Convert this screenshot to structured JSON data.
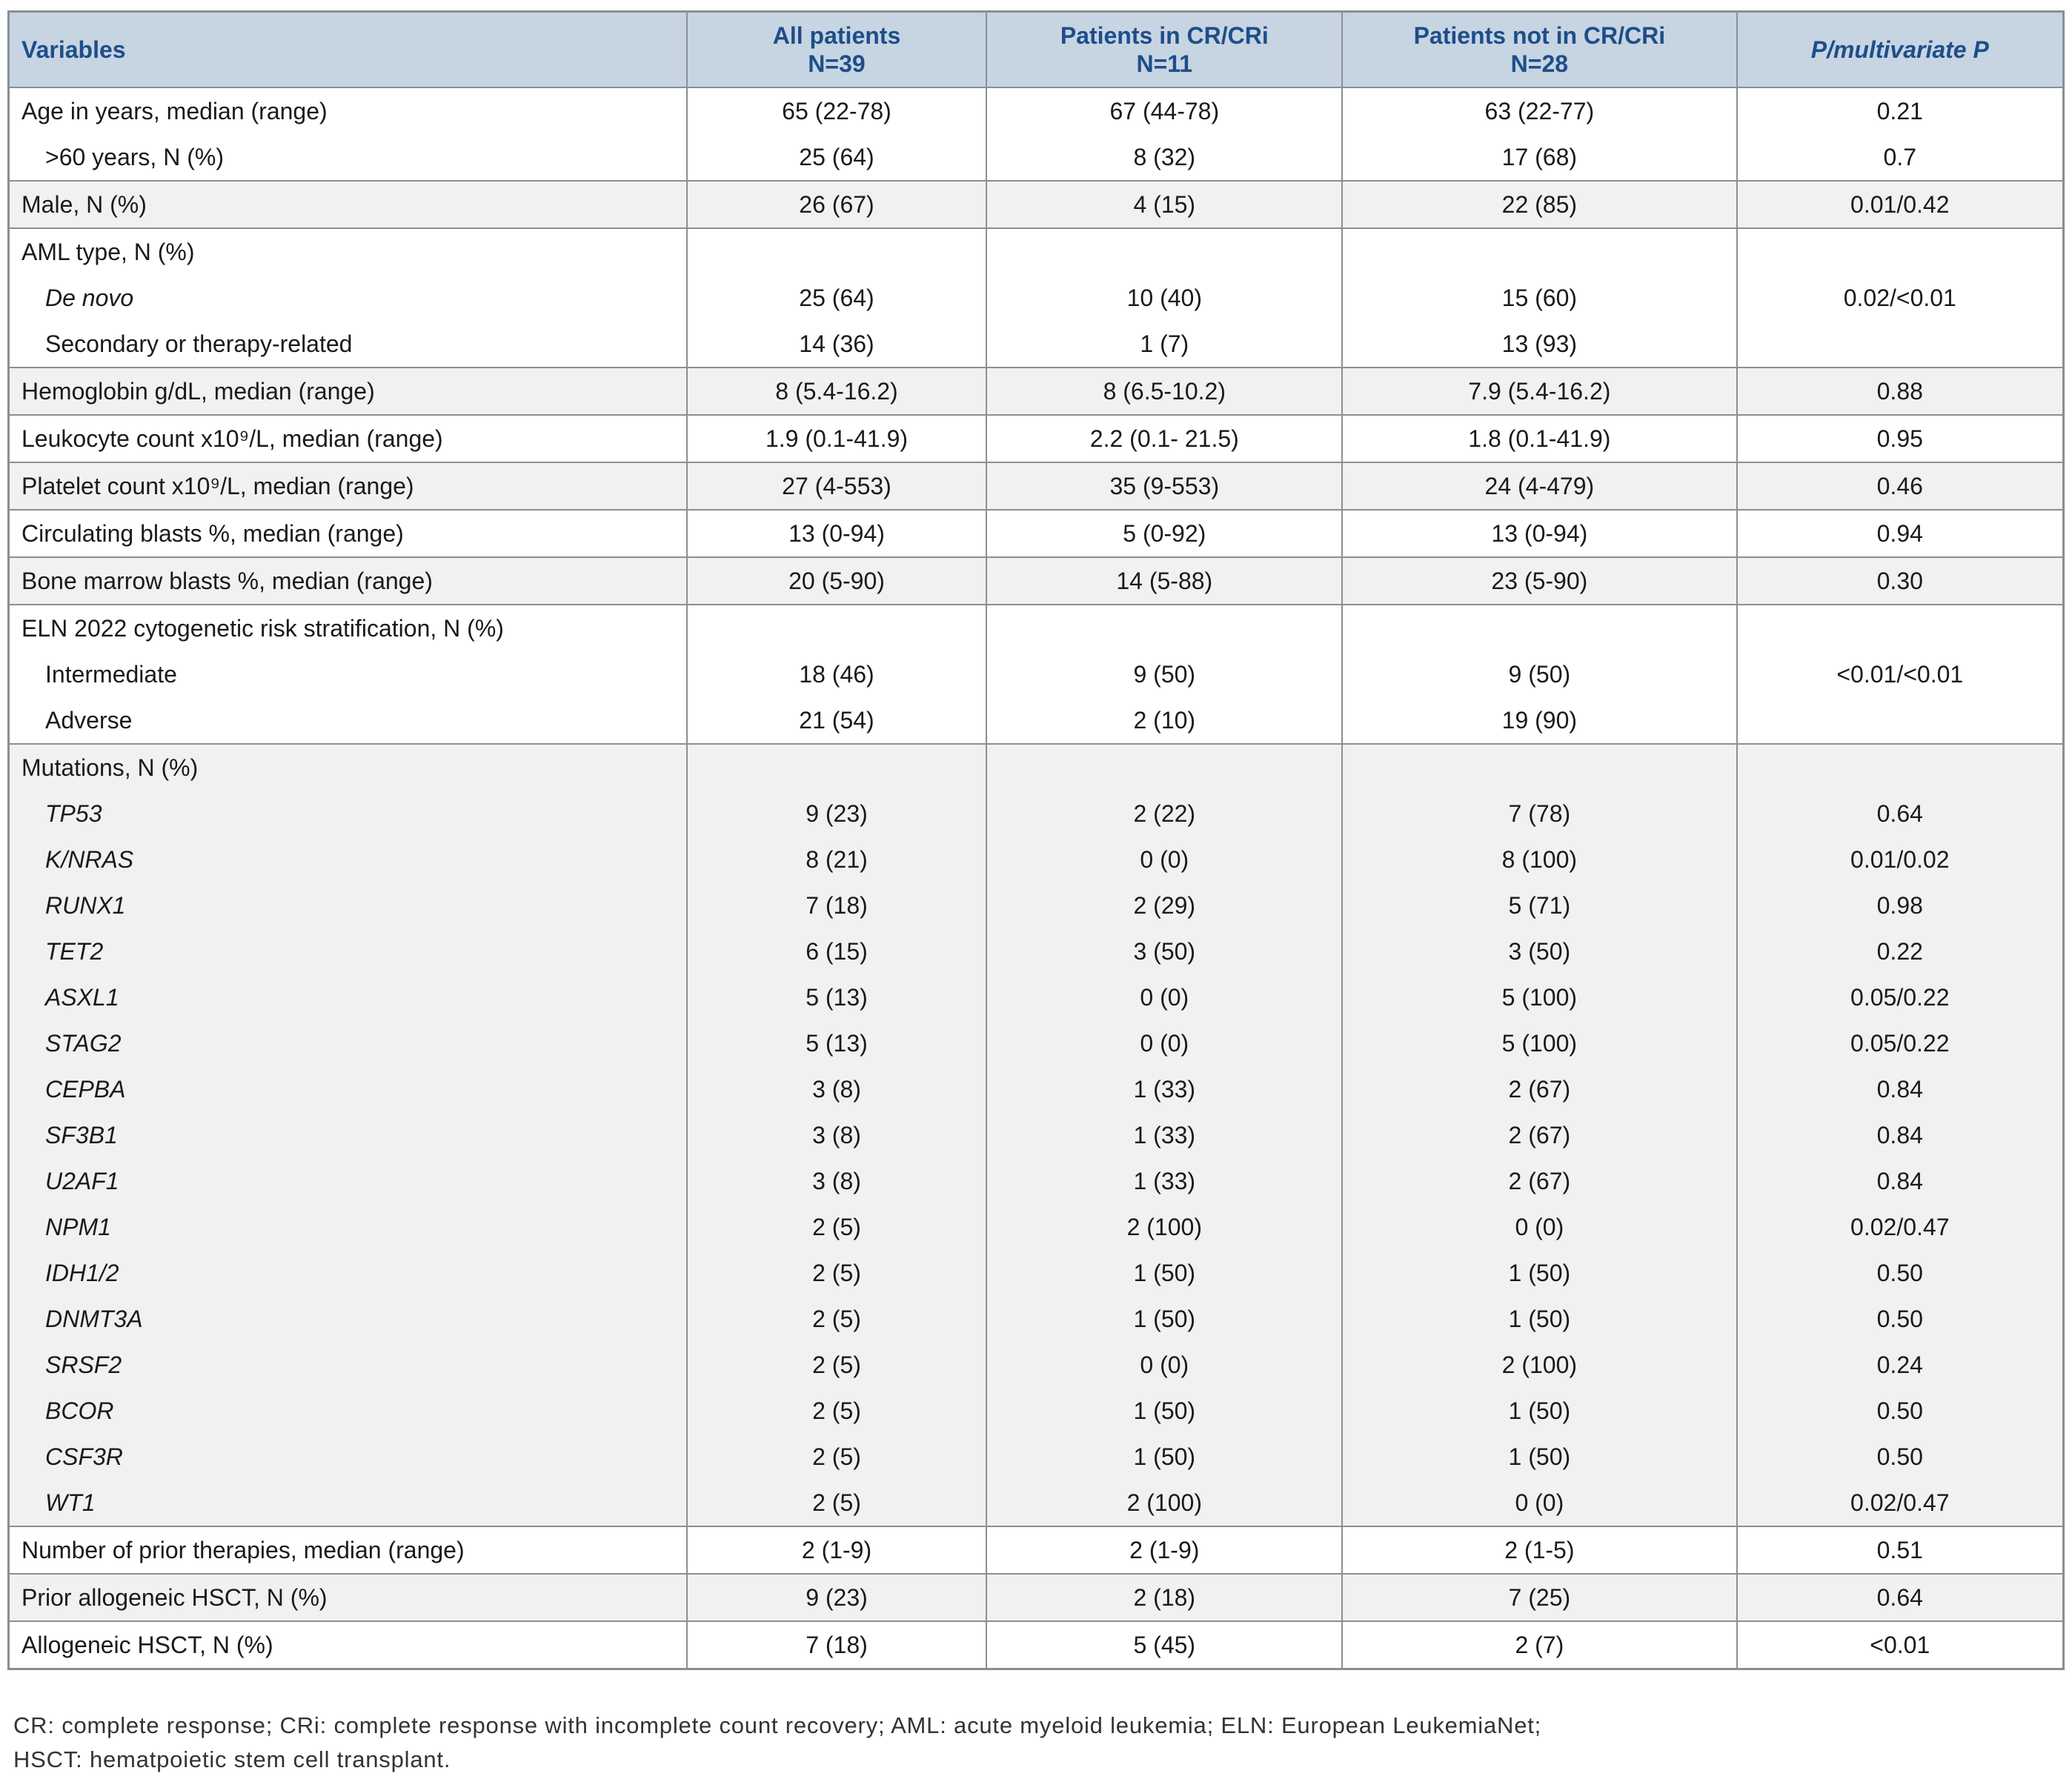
{
  "header": {
    "columns": [
      {
        "label": "Variables",
        "sub": ""
      },
      {
        "label": "All patients",
        "sub": "N=39"
      },
      {
        "label": "Patients in CR/CRi",
        "sub": "N=11"
      },
      {
        "label": "Patients not in CR/CRi",
        "sub": "N=28"
      },
      {
        "label": "P/multivariate P",
        "sub": ""
      }
    ]
  },
  "bands": [
    {
      "shade": "white",
      "rows": [
        {
          "label": "Age in years, median (range)",
          "indent": 0,
          "italic": false,
          "values": [
            "65 (22-78)",
            "67 (44-78)",
            "63 (22-77)",
            "0.21"
          ]
        },
        {
          "label": ">60 years, N (%)",
          "indent": 1,
          "italic": false,
          "values": [
            "25 (64)",
            "8 (32)",
            "17 (68)",
            "0.7"
          ]
        }
      ]
    },
    {
      "shade": "gray",
      "rows": [
        {
          "label": "Male, N (%)",
          "indent": 0,
          "italic": false,
          "values": [
            "26 (67)",
            "4 (15)",
            "22 (85)",
            "0.01/0.42"
          ]
        }
      ]
    },
    {
      "shade": "white",
      "rows": [
        {
          "label": "AML type, N (%)",
          "indent": 0,
          "italic": false,
          "values": [
            "",
            "",
            "",
            ""
          ]
        },
        {
          "label": "De novo",
          "indent": 1,
          "italic": true,
          "values": [
            "25 (64)",
            "10 (40)",
            "15 (60)",
            "0.02/<0.01"
          ]
        },
        {
          "label": "Secondary or therapy-related",
          "indent": 1,
          "italic": false,
          "values": [
            "14 (36)",
            "1 (7)",
            "13 (93)",
            ""
          ]
        }
      ]
    },
    {
      "shade": "gray",
      "rows": [
        {
          "label": "Hemoglobin g/dL, median (range)",
          "indent": 0,
          "italic": false,
          "values": [
            "8 (5.4-16.2)",
            "8 (6.5-10.2)",
            "7.9 (5.4-16.2)",
            "0.88"
          ]
        }
      ]
    },
    {
      "shade": "white",
      "rows": [
        {
          "label": "Leukocyte count x10⁹/L, median (range)",
          "indent": 0,
          "italic": false,
          "values": [
            "1.9 (0.1-41.9)",
            "2.2 (0.1- 21.5)",
            "1.8 (0.1-41.9)",
            "0.95"
          ]
        }
      ]
    },
    {
      "shade": "gray",
      "rows": [
        {
          "label": "Platelet count x10⁹/L, median (range)",
          "indent": 0,
          "italic": false,
          "values": [
            "27 (4-553)",
            "35 (9-553)",
            "24 (4-479)",
            "0.46"
          ]
        }
      ]
    },
    {
      "shade": "white",
      "rows": [
        {
          "label": "Circulating blasts %, median (range)",
          "indent": 0,
          "italic": false,
          "values": [
            "13 (0-94)",
            "5 (0-92)",
            "13 (0-94)",
            "0.94"
          ]
        }
      ]
    },
    {
      "shade": "gray",
      "rows": [
        {
          "label": "Bone marrow blasts %, median (range)",
          "indent": 0,
          "italic": false,
          "values": [
            "20 (5-90)",
            "14 (5-88)",
            "23 (5-90)",
            "0.30"
          ]
        }
      ]
    },
    {
      "shade": "white",
      "rows": [
        {
          "label": "ELN 2022 cytogenetic risk stratification, N (%)",
          "indent": 0,
          "italic": false,
          "values": [
            "",
            "",
            "",
            ""
          ]
        },
        {
          "label": "Intermediate",
          "indent": 1,
          "italic": false,
          "values": [
            "18 (46)",
            "9 (50)",
            "9 (50)",
            "<0.01/<0.01"
          ]
        },
        {
          "label": "Adverse",
          "indent": 1,
          "italic": false,
          "values": [
            "21 (54)",
            "2 (10)",
            "19 (90)",
            ""
          ]
        }
      ]
    },
    {
      "shade": "gray",
      "rows": [
        {
          "label": "Mutations, N (%)",
          "indent": 0,
          "italic": false,
          "values": [
            "",
            "",
            "",
            ""
          ]
        },
        {
          "label": "TP53",
          "indent": 1,
          "italic": true,
          "values": [
            "9 (23)",
            "2 (22)",
            "7 (78)",
            "0.64"
          ]
        },
        {
          "label": "K/NRAS",
          "indent": 1,
          "italic": true,
          "values": [
            "8 (21)",
            "0 (0)",
            "8 (100)",
            "0.01/0.02"
          ]
        },
        {
          "label": "RUNX1",
          "indent": 1,
          "italic": true,
          "values": [
            "7 (18)",
            "2 (29)",
            "5 (71)",
            "0.98"
          ]
        },
        {
          "label": "TET2",
          "indent": 1,
          "italic": true,
          "values": [
            "6 (15)",
            "3 (50)",
            "3 (50)",
            "0.22"
          ]
        },
        {
          "label": "ASXL1",
          "indent": 1,
          "italic": true,
          "values": [
            "5 (13)",
            "0 (0)",
            "5 (100)",
            "0.05/0.22"
          ]
        },
        {
          "label": "STAG2",
          "indent": 1,
          "italic": true,
          "values": [
            "5 (13)",
            "0 (0)",
            "5 (100)",
            "0.05/0.22"
          ]
        },
        {
          "label": "CEPBA",
          "indent": 1,
          "italic": true,
          "values": [
            "3 (8)",
            "1 (33)",
            "2 (67)",
            "0.84"
          ]
        },
        {
          "label": "SF3B1",
          "indent": 1,
          "italic": true,
          "values": [
            "3 (8)",
            "1 (33)",
            "2 (67)",
            "0.84"
          ]
        },
        {
          "label": "U2AF1",
          "indent": 1,
          "italic": true,
          "values": [
            "3 (8)",
            "1 (33)",
            "2 (67)",
            "0.84"
          ]
        },
        {
          "label": "NPM1",
          "indent": 1,
          "italic": true,
          "values": [
            "2 (5)",
            "2 (100)",
            "0 (0)",
            "0.02/0.47"
          ]
        },
        {
          "label": "IDH1/2",
          "indent": 1,
          "italic": true,
          "values": [
            "2 (5)",
            "1 (50)",
            "1 (50)",
            "0.50"
          ]
        },
        {
          "label": "DNMT3A",
          "indent": 1,
          "italic": true,
          "values": [
            "2 (5)",
            "1 (50)",
            "1 (50)",
            "0.50"
          ]
        },
        {
          "label": "SRSF2",
          "indent": 1,
          "italic": true,
          "values": [
            "2 (5)",
            "0 (0)",
            "2 (100)",
            "0.24"
          ]
        },
        {
          "label": "BCOR",
          "indent": 1,
          "italic": true,
          "values": [
            "2 (5)",
            "1 (50)",
            "1 (50)",
            "0.50"
          ]
        },
        {
          "label": "CSF3R",
          "indent": 1,
          "italic": true,
          "values": [
            "2 (5)",
            "1 (50)",
            "1 (50)",
            "0.50"
          ]
        },
        {
          "label": "WT1",
          "indent": 1,
          "italic": true,
          "values": [
            "2 (5)",
            "2 (100)",
            "0 (0)",
            "0.02/0.47"
          ]
        }
      ]
    },
    {
      "shade": "white",
      "rows": [
        {
          "label": "Number of prior therapies, median (range)",
          "indent": 0,
          "italic": false,
          "values": [
            "2 (1-9)",
            "2 (1-9)",
            "2 (1-5)",
            "0.51"
          ]
        }
      ]
    },
    {
      "shade": "gray",
      "rows": [
        {
          "label": "Prior allogeneic HSCT, N (%)",
          "indent": 0,
          "italic": false,
          "values": [
            "9 (23)",
            "2 (18)",
            "7 (25)",
            "0.64"
          ]
        }
      ]
    },
    {
      "shade": "white",
      "rows": [
        {
          "label": "Allogeneic HSCT, N (%)",
          "indent": 0,
          "italic": false,
          "values": [
            "7 (18)",
            "5 (45)",
            "2 (7)",
            "<0.01"
          ]
        }
      ]
    }
  ],
  "footnote": {
    "line1": "CR: complete response; CRi: complete response with incomplete count recovery; AML: acute myeloid leukemia; ELN: European LeukemiaNet;",
    "line2": "HSCT: hematpoietic stem cell transplant."
  }
}
